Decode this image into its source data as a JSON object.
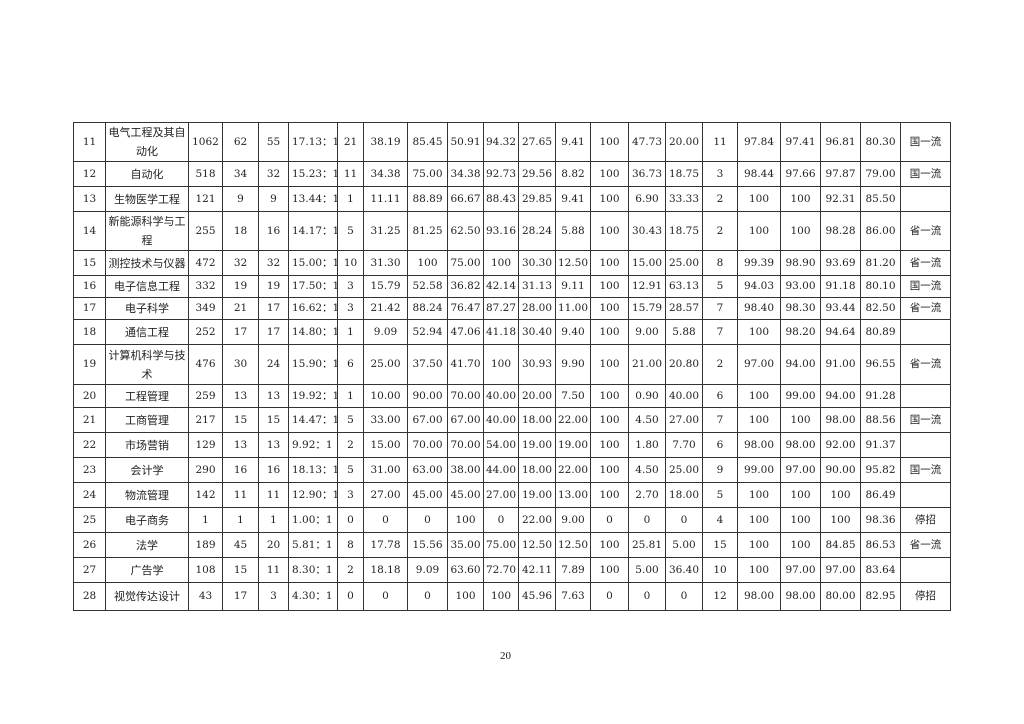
{
  "rows": [
    [
      "11",
      "电气工程及其自动化",
      "1062",
      "62",
      "55",
      "17.13：1",
      "21",
      "38.19",
      "85.45",
      "50.91",
      "94.32",
      "27.65",
      "9.41",
      "100",
      "47.73",
      "20.00",
      "11",
      "97.84",
      "97.41",
      "96.81",
      "80.30",
      "国一流"
    ],
    [
      "12",
      "自动化",
      "518",
      "34",
      "32",
      "15.23：1",
      "11",
      "34.38",
      "75.00",
      "34.38",
      "92.73",
      "29.56",
      "8.82",
      "100",
      "36.73",
      "18.75",
      "3",
      "98.44",
      "97.66",
      "97.87",
      "79.00",
      "国一流"
    ],
    [
      "13",
      "生物医学工程",
      "121",
      "9",
      "9",
      "13.44：1",
      "1",
      "11.11",
      "88.89",
      "66.67",
      "88.43",
      "29.85",
      "9.41",
      "100",
      "6.90",
      "33.33",
      "2",
      "100",
      "100",
      "92.31",
      "85.50",
      ""
    ],
    [
      "14",
      "新能源科学与工程",
      "255",
      "18",
      "16",
      "14.17：1",
      "5",
      "31.25",
      "81.25",
      "62.50",
      "93.16",
      "28.24",
      "5.88",
      "100",
      "30.43",
      "18.75",
      "2",
      "100",
      "100",
      "98.28",
      "86.00",
      "省一流"
    ],
    [
      "15",
      "测控技术与仪器",
      "472",
      "32",
      "32",
      "15.00：1",
      "10",
      "31.30",
      "100",
      "75.00",
      "100",
      "30.30",
      "12.50",
      "100",
      "15.00",
      "25.00",
      "8",
      "99.39",
      "98.90",
      "93.69",
      "81.20",
      "省一流"
    ],
    [
      "16",
      "电子信息工程",
      "332",
      "19",
      "19",
      "17.50：1",
      "3",
      "15.79",
      "52.58",
      "36.82",
      "42.14",
      "31.13",
      "9.11",
      "100",
      "12.91",
      "63.13",
      "5",
      "94.03",
      "93.00",
      "91.18",
      "80.10",
      "国一流"
    ],
    [
      "17",
      "电子科学",
      "349",
      "21",
      "17",
      "16.62：1",
      "3",
      "21.42",
      "88.24",
      "76.47",
      "87.27",
      "28.00",
      "11.00",
      "100",
      "15.79",
      "28.57",
      "7",
      "98.40",
      "98.30",
      "93.44",
      "82.50",
      "省一流"
    ],
    [
      "18",
      "通信工程",
      "252",
      "17",
      "17",
      "14.80：1",
      "1",
      "9.09",
      "52.94",
      "47.06",
      "41.18",
      "30.40",
      "9.40",
      "100",
      "9.00",
      "5.88",
      "7",
      "100",
      "98.20",
      "94.64",
      "80.89",
      ""
    ],
    [
      "19",
      "计算机科学与技术",
      "476",
      "30",
      "24",
      "15.90：1",
      "6",
      "25.00",
      "37.50",
      "41.70",
      "100",
      "30.93",
      "9.90",
      "100",
      "21.00",
      "20.80",
      "2",
      "97.00",
      "94.00",
      "91.00",
      "96.55",
      "省一流"
    ],
    [
      "20",
      "工程管理",
      "259",
      "13",
      "13",
      "19.92：1",
      "1",
      "10.00",
      "90.00",
      "70.00",
      "40.00",
      "20.00",
      "7.50",
      "100",
      "0.90",
      "40.00",
      "6",
      "100",
      "99.00",
      "94.00",
      "91.28",
      ""
    ],
    [
      "21",
      "工商管理",
      "217",
      "15",
      "15",
      "14.47：1",
      "5",
      "33.00",
      "67.00",
      "67.00",
      "40.00",
      "18.00",
      "22.00",
      "100",
      "4.50",
      "27.00",
      "7",
      "100",
      "100",
      "98.00",
      "88.56",
      "国一流"
    ],
    [
      "22",
      "市场营销",
      "129",
      "13",
      "13",
      "9.92：1",
      "2",
      "15.00",
      "70.00",
      "70.00",
      "54.00",
      "19.00",
      "19.00",
      "100",
      "1.80",
      "7.70",
      "6",
      "98.00",
      "98.00",
      "92.00",
      "91.37",
      ""
    ],
    [
      "23",
      "会计学",
      "290",
      "16",
      "16",
      "18.13：1",
      "5",
      "31.00",
      "63.00",
      "38.00",
      "44.00",
      "18.00",
      "22.00",
      "100",
      "4.50",
      "25.00",
      "9",
      "99.00",
      "97.00",
      "90.00",
      "95.82",
      "国一流"
    ],
    [
      "24",
      "物流管理",
      "142",
      "11",
      "11",
      "12.90：1",
      "3",
      "27.00",
      "45.00",
      "45.00",
      "27.00",
      "19.00",
      "13.00",
      "100",
      "2.70",
      "18.00",
      "5",
      "100",
      "100",
      "100",
      "86.49",
      ""
    ],
    [
      "25",
      "电子商务",
      "1",
      "1",
      "1",
      "1.00：1",
      "0",
      "0",
      "0",
      "100",
      "0",
      "22.00",
      "9.00",
      "0",
      "0",
      "0",
      "4",
      "100",
      "100",
      "100",
      "98.36",
      "停招"
    ],
    [
      "26",
      "法学",
      "189",
      "45",
      "20",
      "5.81：1",
      "8",
      "17.78",
      "15.56",
      "35.00",
      "75.00",
      "12.50",
      "12.50",
      "100",
      "25.81",
      "5.00",
      "15",
      "100",
      "100",
      "84.85",
      "86.53",
      "省一流"
    ],
    [
      "27",
      "广告学",
      "108",
      "15",
      "11",
      "8.30：1",
      "2",
      "18.18",
      "9.09",
      "63.60",
      "72.70",
      "42.11",
      "7.89",
      "100",
      "5.00",
      "36.40",
      "10",
      "100",
      "97.00",
      "97.00",
      "83.64",
      ""
    ],
    [
      "28",
      "视觉传达设计",
      "43",
      "17",
      "3",
      "4.30：1",
      "0",
      "0",
      "0",
      "100",
      "100",
      "45.96",
      "7.63",
      "0",
      "0",
      "0",
      "12",
      "98.00",
      "98.00",
      "80.00",
      "82.95",
      "停招"
    ]
  ],
  "page_number": "20"
}
